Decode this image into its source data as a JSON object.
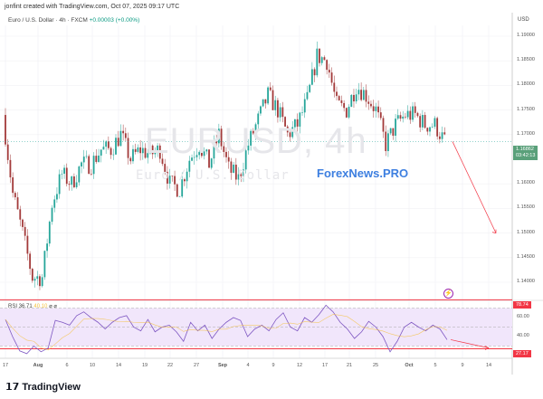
{
  "credit": "jonfint created with TradingView.com, Oct 07, 2025 09:17 UTC",
  "symbol": {
    "name": "Euro / U.S. Dollar · 4h · FXCM",
    "change": "+0.00003 (+0.00%)"
  },
  "watermark": {
    "symbol": "EURUSD, 4h",
    "description": "Euro / U.S. Dollar"
  },
  "overlay_brand": "ForexNews.PRO",
  "currency": "USD",
  "current_price": {
    "price": "1.16862",
    "countdown": "03:42:13",
    "color": "#5aa07a"
  },
  "rsi_legend": {
    "label": "RSI",
    "value": "36.71",
    "ma": "40.10",
    "icons": "⌀ ⌀"
  },
  "rsi_levels": {
    "upper": "78.74",
    "lower": "27.17",
    "color": "#f23645"
  },
  "branding": "TradingView",
  "colors": {
    "up": "#26a69a",
    "down": "#a33a3a",
    "rsi": "#7e57c2",
    "rsi_ma": "#f5c242",
    "rsi_band": "#f1e6fb",
    "arrow": "#f23645"
  },
  "chart_data": [
    {
      "type": "candlestick",
      "title": "Euro / U.S. Dollar · 4h · FXCM",
      "ylabel": "USD",
      "ylim": [
        1.137,
        1.192
      ],
      "y_ticks": [
        "1.19000",
        "1.18500",
        "1.18000",
        "1.17500",
        "1.17000",
        "1.16000",
        "1.15500",
        "1.15000",
        "1.14500",
        "1.14000"
      ],
      "x_ticks": [
        "17",
        "Aug",
        "6",
        "10",
        "14",
        "19",
        "22",
        "27",
        "Sep",
        "4",
        "9",
        "12",
        "17",
        "21",
        "25",
        "Oct",
        "5",
        "9",
        "14"
      ],
      "approx_closes": [
        1.174,
        1.158,
        1.15,
        1.141,
        1.141,
        1.156,
        1.162,
        1.16,
        1.164,
        1.164,
        1.167,
        1.167,
        1.17,
        1.165,
        1.167,
        1.166,
        1.167,
        1.16,
        1.159,
        1.165,
        1.168,
        1.164,
        1.17,
        1.163,
        1.161,
        1.168,
        1.173,
        1.178,
        1.175,
        1.17,
        1.172,
        1.177,
        1.186,
        1.185,
        1.176,
        1.175,
        1.18,
        1.178,
        1.175,
        1.168,
        1.172,
        1.174,
        1.174,
        1.172,
        1.172,
        1.1686
      ],
      "forecast_arrow": {
        "from": 1.1686,
        "to": 1.15
      },
      "grid": true
    },
    {
      "type": "line",
      "title": "RSI",
      "y_ticks": [
        "60.00",
        "40.00"
      ],
      "ylim": [
        20,
        82
      ],
      "approx_values": [
        58,
        40,
        25,
        22,
        30,
        24,
        28,
        57,
        55,
        52,
        62,
        66,
        60,
        55,
        48,
        55,
        60,
        62,
        50,
        46,
        58,
        45,
        50,
        52,
        45,
        35,
        55,
        46,
        52,
        38,
        48,
        55,
        60,
        57,
        40,
        48,
        52,
        46,
        58,
        65,
        50,
        46,
        60,
        55,
        63,
        73,
        66,
        55,
        48,
        38,
        45,
        56,
        50,
        40,
        24,
        35,
        50,
        55,
        50,
        46,
        52,
        48,
        36.71
      ],
      "forecast_arrow": {
        "from": 36.7,
        "to": 28
      },
      "grid": true
    }
  ]
}
